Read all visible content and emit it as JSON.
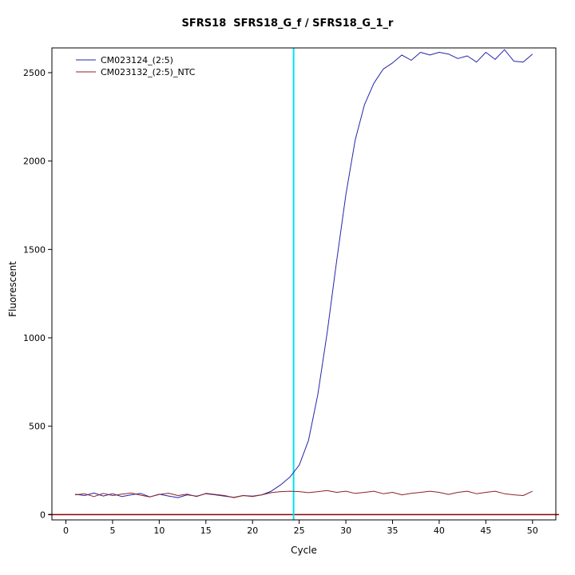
{
  "page": {
    "title": "SFRS18  SFRS18_G_f / SFRS18_G_1_r"
  },
  "chart_data": {
    "type": "line",
    "title": "SFRS18  SFRS18_G_f / SFRS18_G_1_r",
    "xlabel": "Cycle",
    "ylabel": "Fluorescent",
    "xlim": [
      -1.5,
      52.5
    ],
    "ylim": [
      -30,
      2640
    ],
    "x_ticks": [
      0,
      5,
      10,
      15,
      20,
      25,
      30,
      35,
      40,
      45,
      50
    ],
    "y_ticks": [
      0,
      500,
      1000,
      1500,
      2000,
      2500
    ],
    "grid": false,
    "legend_position": "top-left",
    "threshold_line": {
      "x": 24.4,
      "color": "#00e5ee"
    },
    "baseline": {
      "y": 0,
      "color": "#8b0000"
    },
    "cycles": [
      1,
      2,
      3,
      4,
      5,
      6,
      7,
      8,
      9,
      10,
      11,
      12,
      13,
      14,
      15,
      16,
      17,
      18,
      19,
      20,
      21,
      22,
      23,
      24,
      25,
      26,
      27,
      28,
      29,
      30,
      31,
      32,
      33,
      34,
      35,
      36,
      37,
      38,
      39,
      40,
      41,
      42,
      43,
      44,
      45,
      46,
      47,
      48,
      49,
      50
    ],
    "series": [
      {
        "name": "CM023124_(2:5)",
        "color": "#2525a8",
        "values": [
          115,
          108,
          122,
          105,
          118,
          102,
          112,
          120,
          100,
          115,
          105,
          96,
          112,
          104,
          118,
          112,
          104,
          98,
          108,
          104,
          112,
          132,
          168,
          212,
          280,
          420,
          680,
          1030,
          1430,
          1810,
          2120,
          2320,
          2440,
          2520,
          2555,
          2600,
          2570,
          2615,
          2600,
          2615,
          2605,
          2580,
          2595,
          2560,
          2615,
          2575,
          2630,
          2565,
          2560,
          2605
        ]
      },
      {
        "name": "CM023132_(2:5)_NTC",
        "color": "#8b2323",
        "values": [
          112,
          118,
          102,
          120,
          108,
          116,
          122,
          110,
          100,
          114,
          121,
          108,
          116,
          102,
          120,
          114,
          108,
          96,
          108,
          102,
          112,
          124,
          130,
          132,
          130,
          124,
          130,
          136,
          126,
          132,
          120,
          126,
          132,
          118,
          126,
          112,
          120,
          126,
          132,
          126,
          114,
          126,
          132,
          118,
          126,
          132,
          118,
          112,
          108,
          132
        ]
      }
    ]
  }
}
